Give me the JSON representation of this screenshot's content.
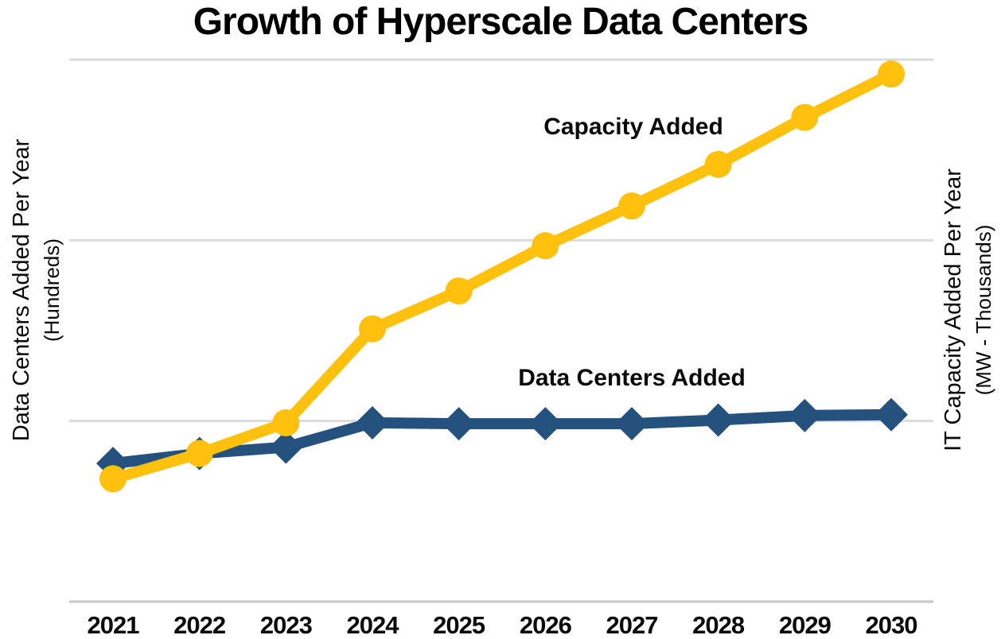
{
  "page": {
    "background": "#FFFFFF",
    "text_color": "#0A0A0A"
  },
  "chart_data": {
    "type": "line",
    "title": "Growth of Hyperscale Data Centers",
    "x": [
      "2021",
      "2022",
      "2023",
      "2024",
      "2025",
      "2026",
      "2027",
      "2028",
      "2029",
      "2030"
    ],
    "xlabel": "",
    "y_axis_left": {
      "label": "Data Centers Added Per Year",
      "sublabel": "(Hundreds)"
    },
    "y_axis_right": {
      "label": "IT Capacity Added Per Year",
      "sublabel": "(MW - Thousands)"
    },
    "value_units": "relative units; no numeric tick labels shown, 1.0 = one gridline interval",
    "ylim": [
      0,
      3
    ],
    "grid": "horizontal gridlines only",
    "gridline_color": "#DBDBDB",
    "baseline_color": "#C6C6C6",
    "legend_position": "inline text annotations near each line",
    "series": [
      {
        "name": "Data Centers Added",
        "axis": "left",
        "color": "#24517D",
        "marker": "diamond",
        "values": [
          0.765,
          0.82,
          0.855,
          0.99,
          0.985,
          0.985,
          0.985,
          1.005,
          1.03,
          1.035
        ]
      },
      {
        "name": "Capacity Added",
        "axis": "right",
        "color": "#FFC10D",
        "marker": "circle",
        "values": [
          0.68,
          0.82,
          0.99,
          1.51,
          1.72,
          1.97,
          2.19,
          2.42,
          2.68,
          2.92
        ]
      }
    ]
  }
}
